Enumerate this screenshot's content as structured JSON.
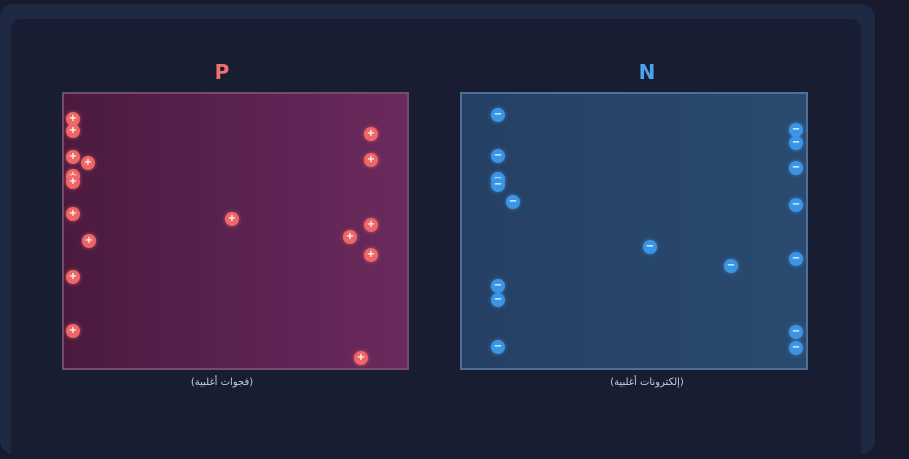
{
  "regions": {
    "p": {
      "label": "P",
      "caption": "(فجوات أغلبية)",
      "color": "#f07070",
      "carrier_symbol": "+",
      "carrier_color": "#f06666"
    },
    "n": {
      "label": "N",
      "caption": "(إلكترونات أغلبية)",
      "color": "#4aa3f0",
      "carrier_symbol": "−",
      "carrier_color": "#3a95e6"
    }
  }
}
